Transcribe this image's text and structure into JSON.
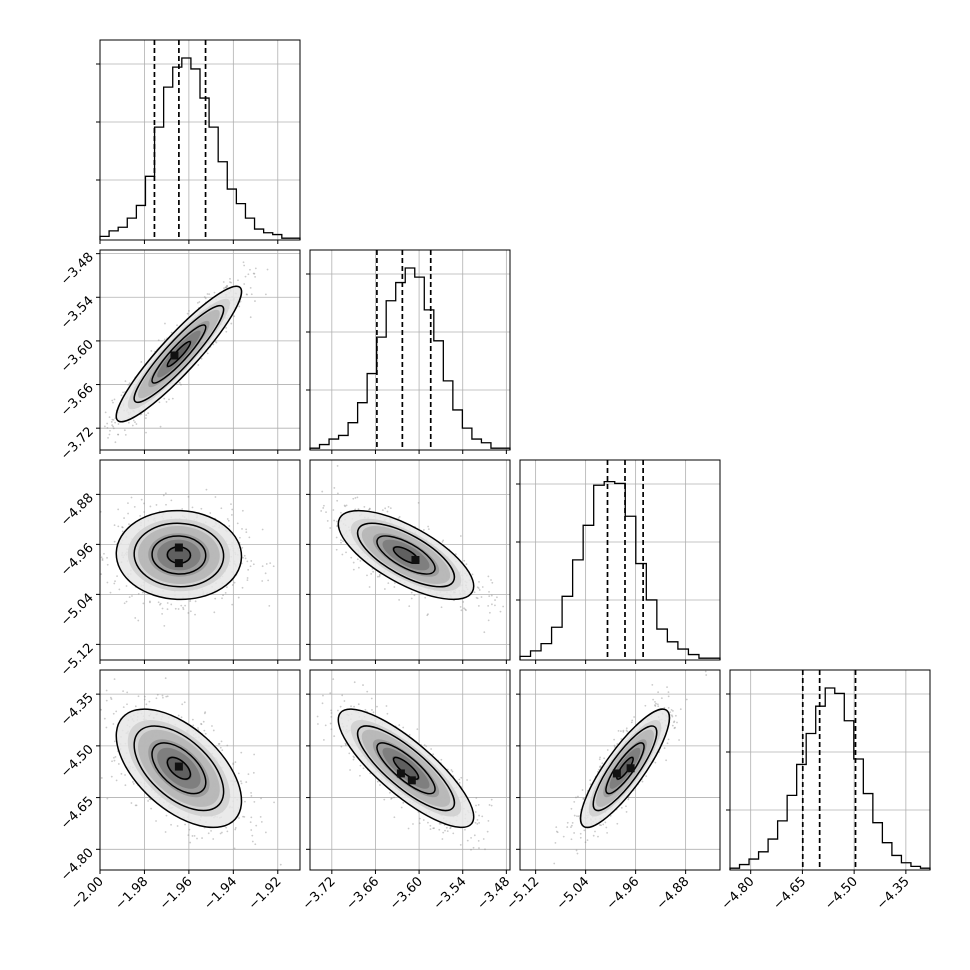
{
  "chart_data": {
    "type": "corner",
    "params": [
      {
        "range": [
          -2.0,
          -1.91
        ],
        "ticks": [
          "-2.00",
          "-1.98",
          "-1.96",
          "-1.94",
          "-1.92"
        ],
        "tick_values": [
          -2.0,
          -1.98,
          -1.96,
          -1.94,
          -1.92
        ]
      },
      {
        "range": [
          -3.75,
          -3.475
        ],
        "ticks": [
          "-3.72",
          "-3.66",
          "-3.60",
          "-3.54",
          "-3.48"
        ],
        "tick_values": [
          -3.72,
          -3.66,
          -3.6,
          -3.54,
          -3.48
        ]
      },
      {
        "range": [
          -5.145,
          -4.825
        ],
        "ticks": [
          "-5.12",
          "-5.04",
          "-4.96",
          "-4.88"
        ],
        "tick_values": [
          -5.12,
          -5.04,
          -4.96,
          -4.88
        ]
      },
      {
        "range": [
          -4.86,
          -4.28
        ],
        "ticks": [
          "-4.80",
          "-4.65",
          "-4.50",
          "-4.35"
        ],
        "tick_values": [
          -4.8,
          -4.65,
          -4.5,
          -4.35
        ]
      }
    ],
    "row_y_ticks": [
      {
        "row": 1,
        "labels": [
          "-3.48",
          "-3.54",
          "-3.60",
          "-3.66",
          "-3.72"
        ]
      },
      {
        "row": 2,
        "labels": [
          "-4.88",
          "-4.96",
          "-5.04",
          "-5.12"
        ]
      },
      {
        "row": 3,
        "labels": [
          "-4.35",
          "-4.50",
          "-4.65",
          "-4.80"
        ]
      }
    ],
    "diagonal": [
      {
        "quantiles": [
          -1.9755,
          -1.9645,
          -1.9525
        ],
        "hist": [
          0.02,
          0.05,
          0.07,
          0.12,
          0.19,
          0.35,
          0.62,
          0.84,
          0.95,
          1.0,
          0.94,
          0.78,
          0.62,
          0.43,
          0.28,
          0.2,
          0.12,
          0.06,
          0.04,
          0.03,
          0.01,
          0.01
        ]
      },
      {
        "quantiles": [
          -3.658,
          -3.623,
          -3.584
        ],
        "hist": [
          0.01,
          0.03,
          0.06,
          0.08,
          0.15,
          0.26,
          0.42,
          0.62,
          0.82,
          0.92,
          1.0,
          0.95,
          0.77,
          0.6,
          0.38,
          0.22,
          0.12,
          0.06,
          0.04,
          0.01,
          0.01
        ]
      },
      {
        "quantiles": [
          -5.005,
          -4.977,
          -4.948
        ],
        "hist": [
          0.02,
          0.05,
          0.09,
          0.18,
          0.35,
          0.55,
          0.74,
          0.96,
          0.98,
          0.97,
          0.79,
          0.53,
          0.33,
          0.17,
          0.1,
          0.06,
          0.03,
          0.01,
          0.01
        ]
      },
      {
        "quantiles": [
          -4.649,
          -4.6,
          -4.496
        ],
        "hist": [
          0.01,
          0.03,
          0.06,
          0.1,
          0.17,
          0.27,
          0.41,
          0.58,
          0.75,
          0.9,
          1.0,
          0.97,
          0.82,
          0.61,
          0.42,
          0.26,
          0.15,
          0.08,
          0.04,
          0.02,
          0.01
        ]
      }
    ],
    "pairs": [
      {
        "row": 1,
        "col": 0,
        "center": [
          -1.9645,
          -3.618
        ],
        "rho": 0.92,
        "sd": [
          0.0115,
          0.038
        ],
        "peaks": [
          [
            -1.9665,
            -3.62
          ]
        ]
      },
      {
        "row": 2,
        "col": 0,
        "center": [
          -1.9645,
          -4.977
        ],
        "rho": -0.03,
        "sd": [
          0.0115,
          0.029
        ],
        "peaks": [
          [
            -1.9645,
            -4.965
          ],
          [
            -1.9645,
            -4.99
          ]
        ]
      },
      {
        "row": 2,
        "col": 1,
        "center": [
          -3.618,
          -4.977
        ],
        "rho": -0.7,
        "sd": [
          0.038,
          0.029
        ],
        "peaks": [
          [
            -3.605,
            -4.985
          ]
        ]
      },
      {
        "row": 3,
        "col": 0,
        "center": [
          -1.9645,
          -4.565
        ],
        "rho": -0.55,
        "sd": [
          0.0115,
          0.07
        ],
        "peaks": [
          [
            -1.9645,
            -4.56
          ]
        ]
      },
      {
        "row": 3,
        "col": 1,
        "center": [
          -3.618,
          -4.565
        ],
        "rho": -0.82,
        "sd": [
          0.038,
          0.07
        ],
        "peaks": [
          [
            -3.625,
            -4.58
          ],
          [
            -3.61,
            -4.6
          ]
        ]
      },
      {
        "row": 3,
        "col": 2,
        "center": [
          -4.977,
          -4.565
        ],
        "rho": 0.85,
        "sd": [
          0.029,
          0.07
        ],
        "peaks": [
          [
            -4.99,
            -4.58
          ],
          [
            -4.968,
            -4.565
          ]
        ]
      }
    ],
    "grid": true,
    "colors": {
      "line": "#000000",
      "grid": "#b0b0b0",
      "scatter": "#8c8c8c"
    }
  }
}
